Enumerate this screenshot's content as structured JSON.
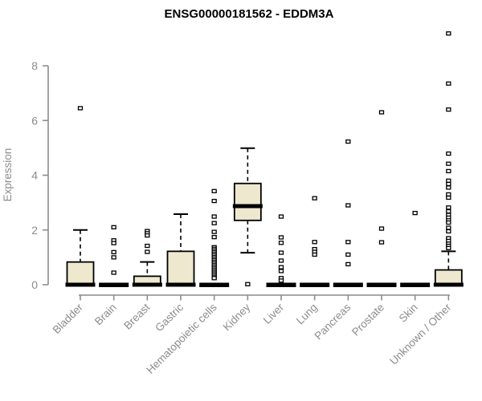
{
  "title": "ENSG00000181562 - EDDM3A",
  "axes": {
    "y_label": "Expression",
    "y_ticks": [
      0,
      2,
      4,
      6,
      8
    ],
    "x_labels": [
      "Bladder",
      "Brain",
      "Breast",
      "Gastric",
      "Hematopoietic cells",
      "Kidney",
      "Liver",
      "Lung",
      "Pancreas",
      "Prostate",
      "Skin",
      "Unknown / Other"
    ]
  },
  "colors": {
    "box_fill": "#eee8cf",
    "box_stroke": "#000000",
    "median": "#000000",
    "whisker": "#000000",
    "outlier_stroke": "#000000",
    "outlier_fill": "#ffffff",
    "axis": "#8c8c8c",
    "title": "#000000",
    "background": "#ffffff"
  },
  "chart_data": {
    "type": "boxplot",
    "title": "ENSG00000181562 - EDDM3A",
    "xlabel": "",
    "ylabel": "Expression",
    "ylim": [
      0,
      9.3
    ],
    "y_ticks": [
      0,
      2,
      4,
      6,
      8
    ],
    "grid": false,
    "legend": "none",
    "categories": [
      "Bladder",
      "Brain",
      "Breast",
      "Gastric",
      "Hematopoietic cells",
      "Kidney",
      "Liver",
      "Lung",
      "Pancreas",
      "Prostate",
      "Skin",
      "Unknown / Other"
    ],
    "series": [
      {
        "name": "Bladder",
        "q1": 0,
        "median": 0,
        "q3": 0.83,
        "whisker_low": 0,
        "whisker_high": 2.0,
        "outliers": [
          6.45
        ]
      },
      {
        "name": "Brain",
        "q1": 0,
        "median": 0,
        "q3": 0,
        "whisker_low": 0,
        "whisker_high": 0,
        "outliers": [
          2.1,
          1.62,
          1.52,
          1.19,
          1.0,
          0.44
        ]
      },
      {
        "name": "Breast",
        "q1": 0,
        "median": 0,
        "q3": 0.31,
        "whisker_low": 0,
        "whisker_high": 0.83,
        "outliers": [
          1.96,
          1.88,
          1.8,
          1.42,
          1.2
        ]
      },
      {
        "name": "Gastric",
        "q1": 0,
        "median": 0,
        "q3": 1.22,
        "whisker_low": 0,
        "whisker_high": 2.58,
        "outliers": []
      },
      {
        "name": "Hematopoietic cells",
        "q1": 0,
        "median": 0,
        "q3": 0,
        "whisker_low": 0,
        "whisker_high": 0,
        "outliers": [
          3.42,
          3.06,
          2.49,
          2.25,
          1.93,
          1.74,
          1.37,
          1.31,
          1.25,
          1.19,
          1.13,
          1.07,
          1.01,
          0.95,
          0.89,
          0.83,
          0.77,
          0.71,
          0.65,
          0.59,
          0.53,
          0.47,
          0.41,
          0.35,
          0.29,
          0.24
        ]
      },
      {
        "name": "Kidney",
        "q1": 2.35,
        "median": 2.87,
        "q3": 3.7,
        "whisker_low": 1.17,
        "whisker_high": 4.99,
        "outliers": [
          0.02
        ]
      },
      {
        "name": "Liver",
        "q1": 0,
        "median": 0,
        "q3": 0,
        "whisker_low": 0,
        "whisker_high": 0,
        "outliers": [
          2.49,
          1.73,
          1.53,
          1.17,
          0.88,
          0.64,
          0.5,
          0.24,
          0.15
        ]
      },
      {
        "name": "Lung",
        "q1": 0,
        "median": 0,
        "q3": 0,
        "whisker_low": 0,
        "whisker_high": 0,
        "outliers": [
          3.16,
          1.56,
          1.3,
          1.2,
          1.1
        ]
      },
      {
        "name": "Pancreas",
        "q1": 0,
        "median": 0,
        "q3": 0,
        "whisker_low": 0,
        "whisker_high": 0,
        "outliers": [
          5.23,
          2.9,
          1.56,
          1.1,
          0.75
        ]
      },
      {
        "name": "Prostate",
        "q1": 0,
        "median": 0,
        "q3": 0,
        "whisker_low": 0,
        "whisker_high": 0,
        "outliers": [
          6.3,
          2.05,
          1.55
        ]
      },
      {
        "name": "Skin",
        "q1": 0,
        "median": 0,
        "q3": 0,
        "whisker_low": 0,
        "whisker_high": 0,
        "outliers": [
          2.62
        ]
      },
      {
        "name": "Unknown / Other",
        "q1": 0,
        "median": 0,
        "q3": 0.54,
        "whisker_low": 0,
        "whisker_high": 1.22,
        "outliers": [
          9.18,
          7.35,
          6.4,
          4.79,
          4.42,
          4.15,
          3.8,
          3.68,
          3.55,
          3.3,
          3.18,
          2.82,
          2.68,
          2.55,
          2.45,
          2.35,
          2.27,
          2.08,
          1.95,
          1.7,
          1.6,
          1.5,
          1.42,
          1.34
        ]
      }
    ]
  }
}
